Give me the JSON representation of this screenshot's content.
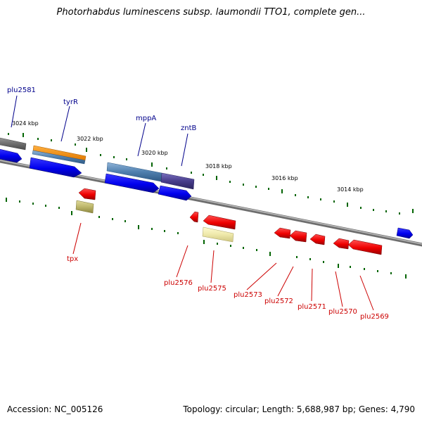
{
  "title": "Photorhabdus luminescens subsp. laumondii TTO1, complete gen...",
  "accession": "Accession: NC_005126",
  "summary": "Topology: circular; Length: 5,688,987 bp; Genes: 4,790",
  "colors": {
    "forward_cds": "#0000ee",
    "reverse_cds": "#ee0000",
    "gene_gray": "#777777",
    "gene_orange": "#ff8c00",
    "gene_steelblue": "#4f7fae",
    "gene_dark_slate": "#483d8b",
    "gene_khaki": "#bdb76b",
    "gene_pale_yellow": "#eee8aa",
    "backbone": "#888888",
    "tick": "#006400",
    "label_top": "#00008b",
    "label_bottom": "#cc0000"
  },
  "scale": {
    "ticks": [
      {
        "label": "3024 kbp"
      },
      {
        "label": "3022 kbp"
      },
      {
        "label": "3020 kbp"
      },
      {
        "label": "3018 kbp"
      },
      {
        "label": "3016 kbp"
      },
      {
        "label": "3014 kbp"
      }
    ]
  },
  "genes_top": [
    {
      "name": "plu2581"
    },
    {
      "name": "tyrR"
    },
    {
      "name": "mppA"
    },
    {
      "name": "zntB"
    }
  ],
  "genes_bottom": [
    {
      "name": "tpx"
    },
    {
      "name": "plu2576"
    },
    {
      "name": "plu2575"
    },
    {
      "name": "plu2573"
    },
    {
      "name": "plu2572"
    },
    {
      "name": "plu2571"
    },
    {
      "name": "plu2570"
    },
    {
      "name": "plu2569"
    }
  ]
}
